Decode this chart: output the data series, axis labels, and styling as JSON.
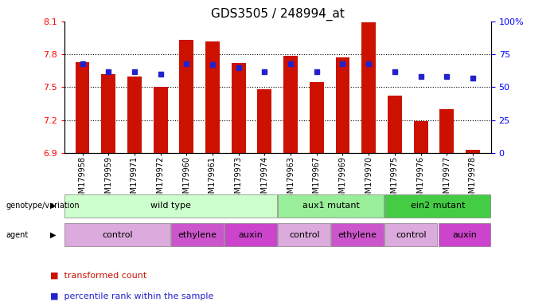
{
  "title": "GDS3505 / 248994_at",
  "samples": [
    "GSM179958",
    "GSM179959",
    "GSM179971",
    "GSM179972",
    "GSM179960",
    "GSM179961",
    "GSM179973",
    "GSM179974",
    "GSM179963",
    "GSM179967",
    "GSM179969",
    "GSM179970",
    "GSM179975",
    "GSM179976",
    "GSM179977",
    "GSM179978"
  ],
  "bar_values": [
    7.73,
    7.62,
    7.6,
    7.5,
    7.93,
    7.92,
    7.72,
    7.48,
    7.79,
    7.55,
    7.77,
    8.09,
    7.42,
    7.19,
    7.3,
    6.93
  ],
  "percentile_values": [
    68,
    62,
    62,
    60,
    68,
    67,
    65,
    62,
    68,
    62,
    68,
    68,
    62,
    58,
    58,
    57
  ],
  "ymin": 6.9,
  "ymax": 8.1,
  "yticks": [
    6.9,
    7.2,
    7.5,
    7.8,
    8.1
  ],
  "right_yticks": [
    0,
    25,
    50,
    75,
    100
  ],
  "bar_color": "#cc1100",
  "dot_color": "#2222cc",
  "genotype_groups": [
    {
      "label": "wild type",
      "start": 0,
      "end": 8,
      "color": "#ccffcc"
    },
    {
      "label": "aux1 mutant",
      "start": 8,
      "end": 12,
      "color": "#99ee99"
    },
    {
      "label": "ein2 mutant",
      "start": 12,
      "end": 16,
      "color": "#44cc44"
    }
  ],
  "agent_groups": [
    {
      "label": "control",
      "start": 0,
      "end": 4,
      "color": "#ddaadd"
    },
    {
      "label": "ethylene",
      "start": 4,
      "end": 6,
      "color": "#cc55cc"
    },
    {
      "label": "auxin",
      "start": 6,
      "end": 8,
      "color": "#cc44cc"
    },
    {
      "label": "control",
      "start": 8,
      "end": 10,
      "color": "#ddaadd"
    },
    {
      "label": "ethylene",
      "start": 10,
      "end": 12,
      "color": "#cc55cc"
    },
    {
      "label": "control",
      "start": 12,
      "end": 14,
      "color": "#ddaadd"
    },
    {
      "label": "auxin",
      "start": 14,
      "end": 16,
      "color": "#cc44cc"
    }
  ]
}
